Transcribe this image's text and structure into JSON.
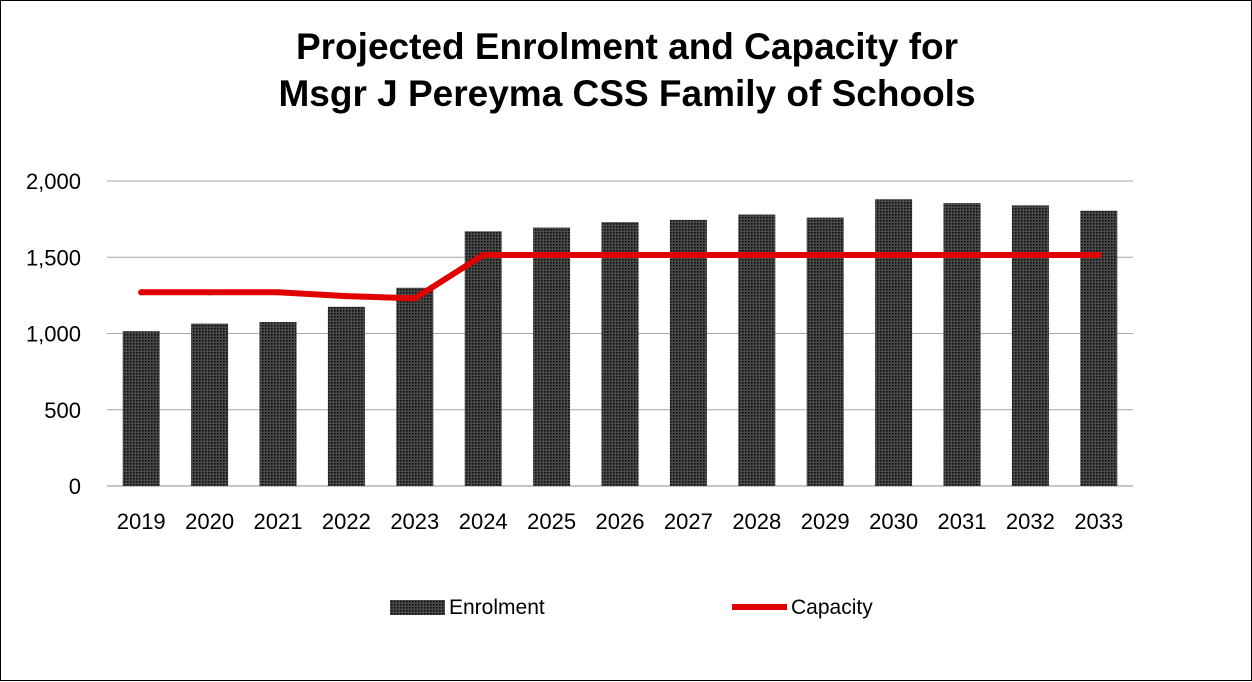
{
  "chart_data": {
    "type": "bar",
    "title_line1": "Projected Enrolment and Capacity for",
    "title_line2": "Msgr J Pereyma CSS Family of Schools",
    "categories": [
      "2019",
      "2020",
      "2021",
      "2022",
      "2023",
      "2024",
      "2025",
      "2026",
      "2027",
      "2028",
      "2029",
      "2030",
      "2031",
      "2032",
      "2033"
    ],
    "series": [
      {
        "name": "Enrolment",
        "type": "bar",
        "color": "#222222",
        "values": [
          1015,
          1065,
          1075,
          1175,
          1300,
          1670,
          1695,
          1730,
          1745,
          1780,
          1760,
          1880,
          1855,
          1840,
          1805
        ]
      },
      {
        "name": "Capacity",
        "type": "line",
        "color": "#e00000",
        "values": [
          1270,
          1270,
          1270,
          1245,
          1230,
          1515,
          1515,
          1515,
          1515,
          1515,
          1515,
          1515,
          1515,
          1515,
          1515
        ]
      }
    ],
    "ylim": [
      0,
      2000
    ],
    "yticks": [
      0,
      500,
      1000,
      1500,
      2000
    ],
    "ytick_labels": [
      "0",
      "500",
      "1,000",
      "1,500",
      "2,000"
    ],
    "grid": true,
    "legend_position": "bottom"
  }
}
